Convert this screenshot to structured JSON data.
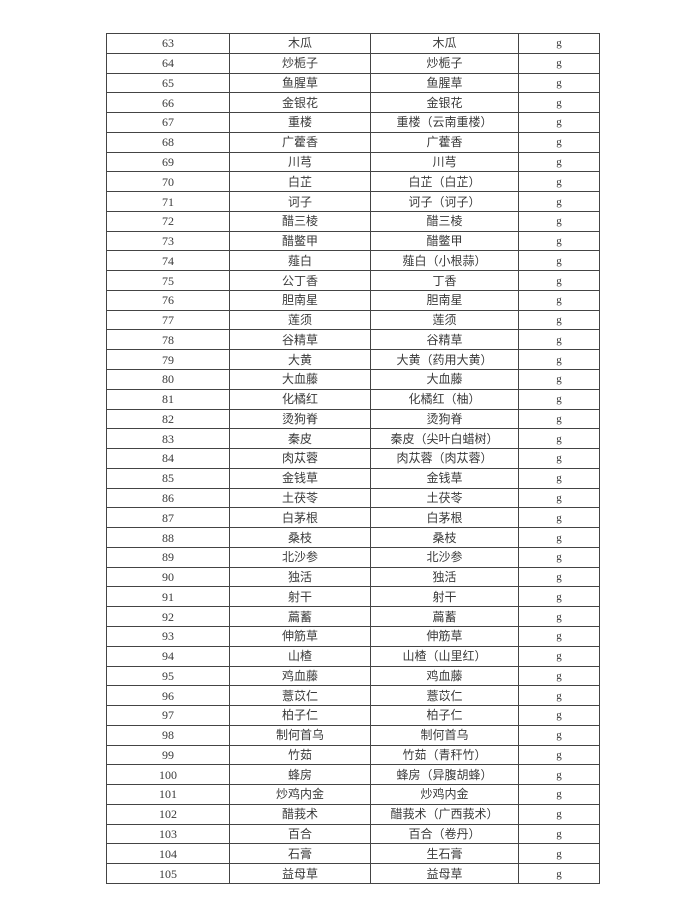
{
  "table": {
    "rows": [
      [
        "63",
        "木瓜",
        "木瓜",
        "g"
      ],
      [
        "64",
        "炒栀子",
        "炒栀子",
        "g"
      ],
      [
        "65",
        "鱼腥草",
        "鱼腥草",
        "g"
      ],
      [
        "66",
        "金银花",
        "金银花",
        "g"
      ],
      [
        "67",
        "重楼",
        "重楼（云南重楼）",
        "g"
      ],
      [
        "68",
        "广藿香",
        "广藿香",
        "g"
      ],
      [
        "69",
        "川芎",
        "川芎",
        "g"
      ],
      [
        "70",
        "白芷",
        "白芷（白芷）",
        "g"
      ],
      [
        "71",
        "诃子",
        "诃子（诃子）",
        "g"
      ],
      [
        "72",
        "醋三棱",
        "醋三棱",
        "g"
      ],
      [
        "73",
        "醋鳖甲",
        "醋鳖甲",
        "g"
      ],
      [
        "74",
        "薤白",
        "薤白（小根蒜）",
        "g"
      ],
      [
        "75",
        "公丁香",
        "丁香",
        "g"
      ],
      [
        "76",
        "胆南星",
        "胆南星",
        "g"
      ],
      [
        "77",
        "莲须",
        "莲须",
        "g"
      ],
      [
        "78",
        "谷精草",
        "谷精草",
        "g"
      ],
      [
        "79",
        "大黄",
        "大黄（药用大黄）",
        "g"
      ],
      [
        "80",
        "大血藤",
        "大血藤",
        "g"
      ],
      [
        "81",
        "化橘红",
        "化橘红（柚）",
        "g"
      ],
      [
        "82",
        "烫狗脊",
        "烫狗脊",
        "g"
      ],
      [
        "83",
        "秦皮",
        "秦皮（尖叶白蜡树）",
        "g"
      ],
      [
        "84",
        "肉苁蓉",
        "肉苁蓉（肉苁蓉）",
        "g"
      ],
      [
        "85",
        "金钱草",
        "金钱草",
        "g"
      ],
      [
        "86",
        "土茯苓",
        "土茯苓",
        "g"
      ],
      [
        "87",
        "白茅根",
        "白茅根",
        "g"
      ],
      [
        "88",
        "桑枝",
        "桑枝",
        "g"
      ],
      [
        "89",
        "北沙参",
        "北沙参",
        "g"
      ],
      [
        "90",
        "独活",
        "独活",
        "g"
      ],
      [
        "91",
        "射干",
        "射干",
        "g"
      ],
      [
        "92",
        "萹蓄",
        "萹蓄",
        "g"
      ],
      [
        "93",
        "伸筋草",
        "伸筋草",
        "g"
      ],
      [
        "94",
        "山楂",
        "山楂（山里红）",
        "g"
      ],
      [
        "95",
        "鸡血藤",
        "鸡血藤",
        "g"
      ],
      [
        "96",
        "薏苡仁",
        "薏苡仁",
        "g"
      ],
      [
        "97",
        "柏子仁",
        "柏子仁",
        "g"
      ],
      [
        "98",
        "制何首乌",
        "制何首乌",
        "g"
      ],
      [
        "99",
        "竹茹",
        "竹茹（青秆竹）",
        "g"
      ],
      [
        "100",
        "蜂房",
        "蜂房（异腹胡蜂）",
        "g"
      ],
      [
        "101",
        "炒鸡内金",
        "炒鸡内金",
        "g"
      ],
      [
        "102",
        "醋莪术",
        "醋莪术（广西莪术）",
        "g"
      ],
      [
        "103",
        "百合",
        "百合（卷丹）",
        "g"
      ],
      [
        "104",
        "石膏",
        "生石膏",
        "g"
      ],
      [
        "105",
        "益母草",
        "益母草",
        "g"
      ]
    ]
  }
}
